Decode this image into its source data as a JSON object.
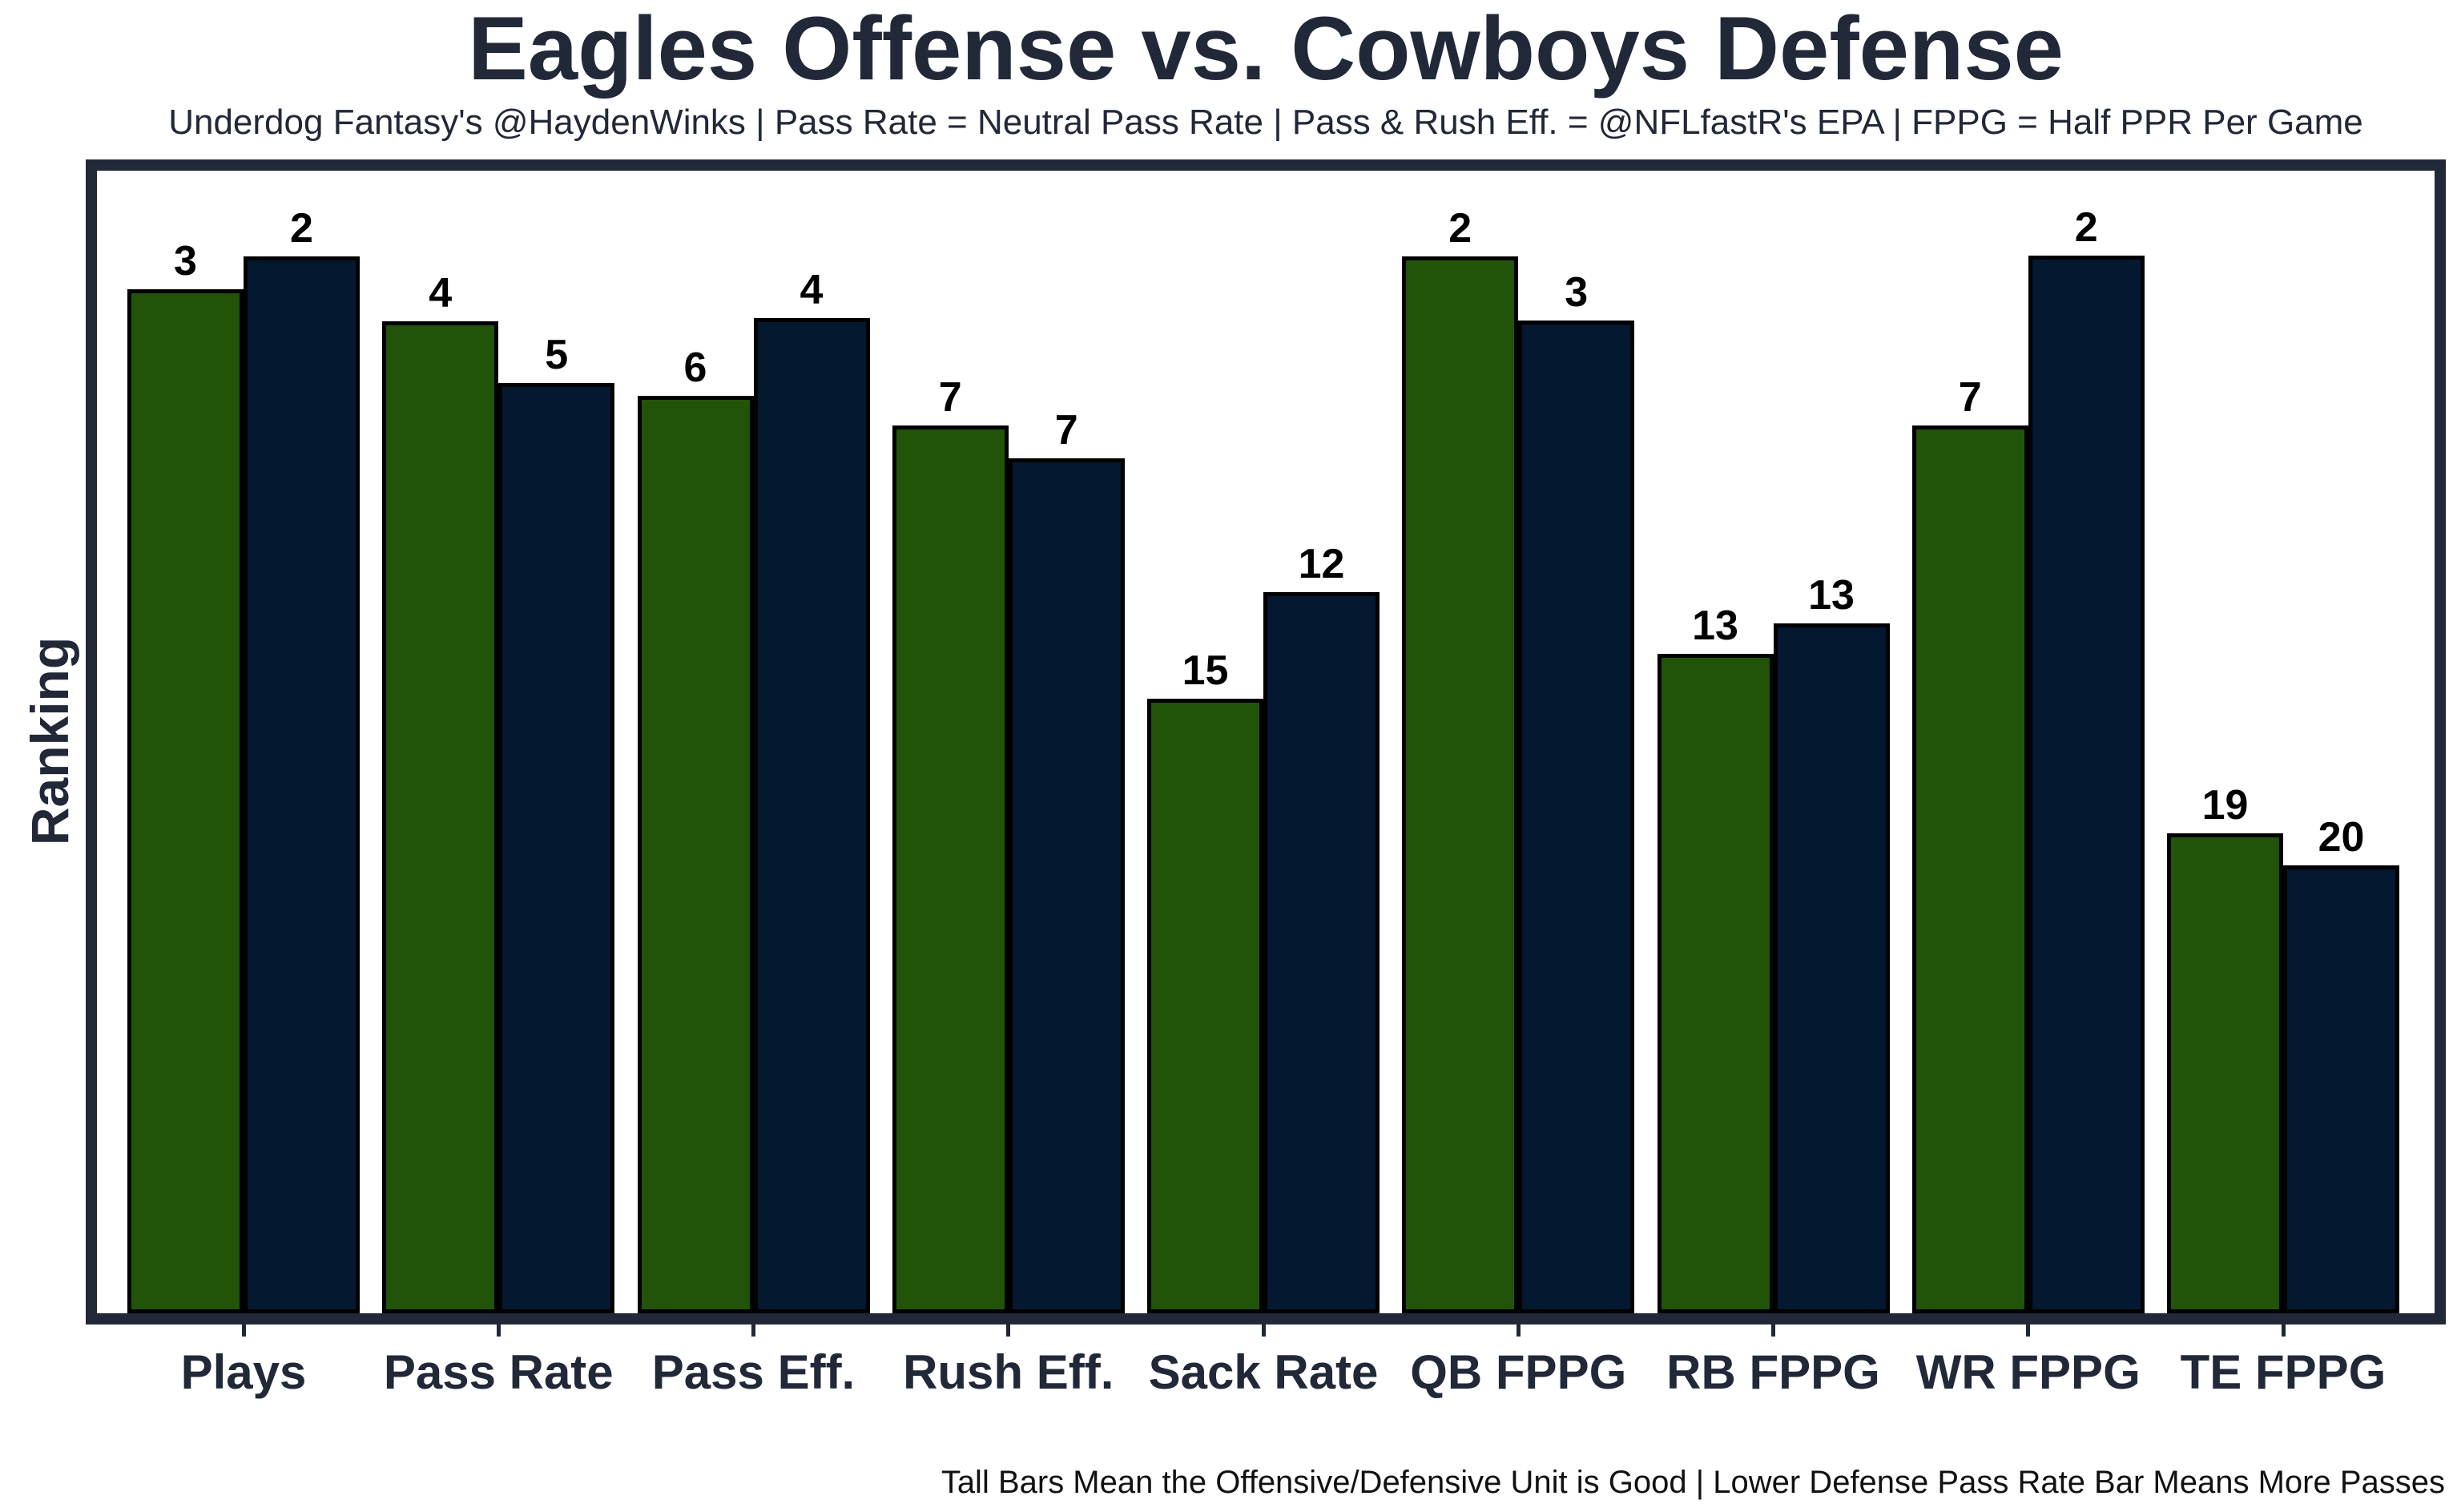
{
  "header": {
    "title": "Eagles Offense vs. Cowboys Defense",
    "subtitle": "Underdog Fantasy's @HaydenWinks | Pass Rate = Neutral Pass Rate | Pass & Rush Eff. = @NFLfastR's EPA | FPPG = Half PPR Per Game"
  },
  "footer": {
    "note": "Tall Bars Mean the Offensive/Defensive Unit is Good | Lower Defense Pass Rate Bar Means More Passes"
  },
  "colors": {
    "eagles_green": "#215408",
    "cowboys_navy": "#041830",
    "bar_outline": "#000000",
    "text_dark": "#212838",
    "background": "#ffffff"
  },
  "chart_data": {
    "type": "bar",
    "title": "Eagles Offense vs. Cowboys Defense",
    "subtitle": "Underdog Fantasy's @HaydenWinks | Pass Rate = Neutral Pass Rate | Pass & Rush Eff. = @NFLfastR's EPA | FPPG = Half PPR Per Game",
    "xlabel": "",
    "ylabel": "Ranking",
    "legend_position": "none",
    "grid": false,
    "value_note": "Bar labels are NFL rankings (1 = best, taller bar = better unit); bar_height_frac is each bar's height as a fraction of the plot area height as drawn",
    "categories": [
      "Plays",
      "Pass Rate",
      "Pass Eff.",
      "Rush Eff.",
      "Sack Rate",
      "QB FPPG",
      "RB FPPG",
      "WR FPPG",
      "TE FPPG"
    ],
    "series": [
      {
        "name": "Eagles Offense",
        "color": "#215408",
        "ranks": [
          3,
          4,
          6,
          7,
          15,
          2,
          13,
          7,
          19
        ],
        "bar_height_frac": [
          0.896,
          0.868,
          0.803,
          0.777,
          0.538,
          0.925,
          0.577,
          0.777,
          0.42
        ]
      },
      {
        "name": "Cowboys Defense",
        "color": "#041830",
        "ranks": [
          2,
          5,
          4,
          7,
          12,
          3,
          13,
          2,
          20
        ],
        "bar_height_frac": [
          0.925,
          0.814,
          0.871,
          0.748,
          0.631,
          0.869,
          0.604,
          0.926,
          0.392
        ]
      }
    ]
  }
}
